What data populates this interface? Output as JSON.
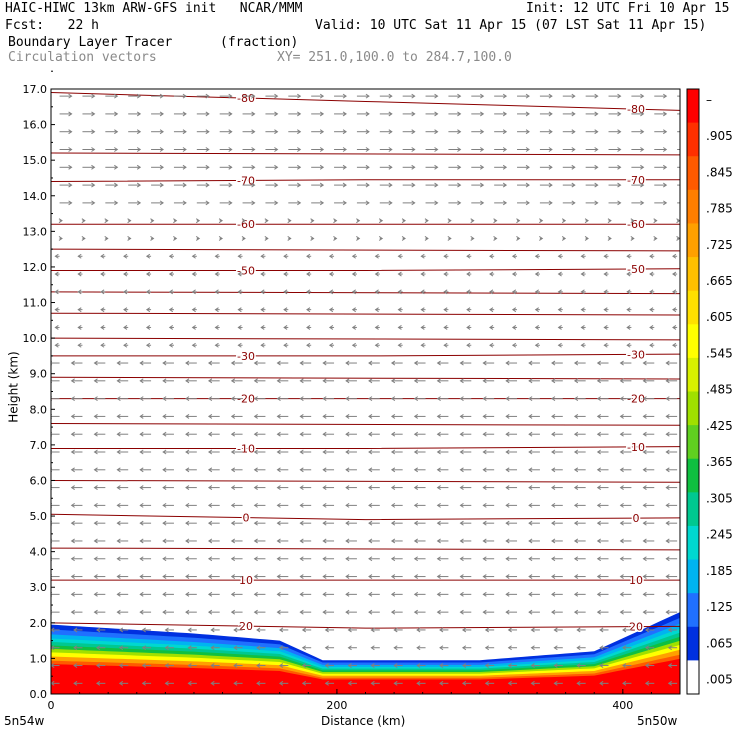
{
  "header": {
    "line1_left": "HAIC-HIWC 13km ARW-GFS init   NCAR/MMM",
    "line1_right": "Init: 12 UTC Fri 10 Apr 15",
    "line2_left": "Fcst:   22 h",
    "line2_right": "Valid: 10 UTC Sat 11 Apr 15 (07 LST Sat 11 Apr 15)",
    "field_name": "Boundary Layer Tracer",
    "field_unit": "(fraction)",
    "vector_name": "Circulation vectors",
    "cross_section": "XY= 251.0,100.0 to 284.7,100.0"
  },
  "chart_data": {
    "type": "heatmap",
    "ylabel": "Height (km)",
    "xlabel": "Distance (km)",
    "xlim": [
      0,
      440
    ],
    "ylim": [
      0,
      17
    ],
    "y_ticks": [
      "0.0",
      "1.0",
      "2.0",
      "3.0",
      "4.0",
      "5.0",
      "6.0",
      "7.0",
      "8.0",
      "9.0",
      "10.0",
      "11.0",
      "12.0",
      "13.0",
      "14.0",
      "15.0",
      "16.0",
      "17.0"
    ],
    "x_ticks": [
      "0",
      "200",
      "400"
    ],
    "x_endpoints": [
      "5n54w",
      "5n50w"
    ],
    "colorbar_labels": [
      "–",
      ".905",
      ".845",
      ".785",
      ".725",
      ".665",
      ".605",
      ".545",
      ".485",
      ".425",
      ".365",
      ".305",
      ".245",
      ".185",
      ".125",
      ".065",
      ".005"
    ],
    "colorbar_colors": [
      "#ff0000",
      "#ff3000",
      "#ff5a00",
      "#ff7e00",
      "#ffa000",
      "#ffc000",
      "#ffe000",
      "#ffff00",
      "#d8f000",
      "#a0e000",
      "#60d020",
      "#10c040",
      "#00c890",
      "#00d8d0",
      "#00b4f0",
      "#2070ff",
      "#0030e0",
      "#ffffff"
    ],
    "contours": [
      {
        "label": "-80",
        "values": [
          16.9,
          16.65,
          16.4
        ]
      },
      {
        "label": "-70",
        "values": [
          14.4,
          14.45,
          14.45
        ]
      },
      {
        "label": "-60",
        "values": [
          13.2,
          13.2,
          13.2
        ]
      },
      {
        "label": "-50",
        "values": [
          11.9,
          11.9,
          11.95
        ]
      },
      {
        "label": "-30",
        "values": [
          9.5,
          9.5,
          9.55
        ]
      },
      {
        "label": "-20",
        "values": [
          8.3,
          8.3,
          8.3
        ]
      },
      {
        "label": "-10",
        "values": [
          6.9,
          6.9,
          6.95
        ]
      },
      {
        "label": "0",
        "values": [
          5.05,
          4.9,
          4.95
        ]
      },
      {
        "label": "10",
        "values": [
          3.2,
          3.2,
          3.2
        ]
      },
      {
        "label": "20",
        "values": [
          2.0,
          1.85,
          1.9
        ]
      }
    ],
    "bl_top_km": [
      1.95,
      1.7,
      1.5,
      0.95,
      0.95,
      1.2,
      2.3
    ],
    "bl_top_x": [
      0,
      100,
      160,
      190,
      300,
      380,
      440
    ],
    "vectors": "gray circulation vectors; westward below 13 km, eastward above 13.5 km"
  },
  "colors": {
    "contour": "#8b0000",
    "vector": "#808080"
  }
}
